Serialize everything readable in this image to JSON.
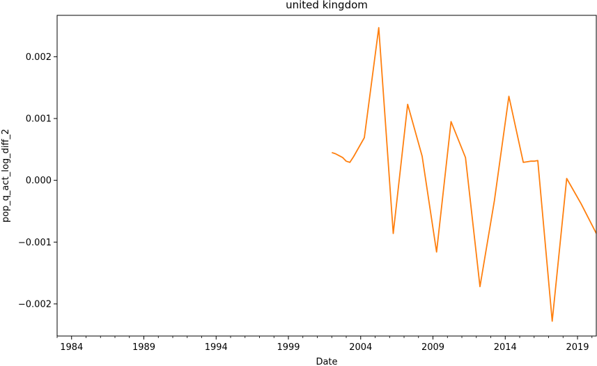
{
  "chart_data": {
    "type": "line",
    "title": "united kingdom",
    "xlabel": "Date",
    "ylabel": "pop_q_act_log_diff_2",
    "x_tick_labels": [
      "1984",
      "1989",
      "1994",
      "1999",
      "2004",
      "2009",
      "2014",
      "2019"
    ],
    "y_tick_labels": [
      "−0.002",
      "−0.001",
      "0.000",
      "0.001",
      "0.002"
    ],
    "x_ticks": [
      1984,
      1989,
      1994,
      1999,
      2004,
      2009,
      2014,
      2019
    ],
    "y_ticks": [
      -0.002,
      -0.001,
      0.0,
      0.001,
      0.002
    ],
    "xlim": [
      1983.0,
      2020.3
    ],
    "ylim": [
      -0.00252,
      0.00267
    ],
    "grid": false,
    "series": [
      {
        "color": "#ff7f0e",
        "x": [
          2002.0,
          2002.25,
          2002.5,
          2002.75,
          2003.0,
          2003.25,
          2003.5,
          2004.25,
          2005.25,
          2006.25,
          2007.25,
          2008.25,
          2009.25,
          2010.25,
          2011.25,
          2012.25,
          2013.25,
          2014.25,
          2015.25,
          2015.5,
          2015.75,
          2016.0,
          2016.25,
          2017.25,
          2018.25,
          2019.25,
          2020.3
        ],
        "y": [
          0.00045,
          0.00043,
          0.0004,
          0.00037,
          0.00031,
          0.00029,
          0.00038,
          0.00069,
          0.00247,
          -0.00086,
          0.00123,
          0.00039,
          -0.00116,
          0.00095,
          0.00037,
          -0.00172,
          -0.00033,
          0.00136,
          0.00029,
          0.0003,
          0.00031,
          0.00031,
          0.00032,
          -0.00228,
          3e-05,
          -0.00038,
          -0.00086
        ]
      }
    ]
  }
}
